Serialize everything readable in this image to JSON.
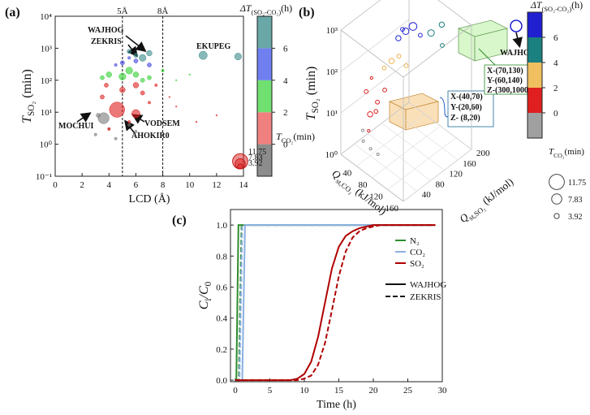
{
  "chart_data": [
    {
      "type": "scatter",
      "panel": "(a)",
      "xlabel": [
        {
          "t": "LCD (Å)"
        }
      ],
      "ylabel": [
        {
          "t": "T",
          "it": true
        },
        {
          "t": "SO₂",
          "sub": true
        },
        {
          "t": " (min)"
        }
      ],
      "xlim": [
        0,
        14
      ],
      "xticks": [
        0,
        2,
        4,
        6,
        8,
        10,
        12,
        14
      ],
      "ylim": [
        0.1,
        10000
      ],
      "log_y": true,
      "yticks": [
        {
          "value": 0.1,
          "label": "10⁻¹"
        },
        {
          "value": 1,
          "label": "10⁰"
        },
        {
          "value": 10,
          "label": "10¹"
        },
        {
          "value": 100,
          "label": "10²"
        },
        {
          "value": 1000,
          "label": "10³"
        },
        {
          "value": 10000,
          "label": "10⁴"
        }
      ],
      "vlines": [
        {
          "value": 5,
          "label": "5Å"
        },
        {
          "value": 8,
          "label": "8Å"
        }
      ],
      "annotations": [
        "WAJHOG",
        "ZEKRIS",
        "EKUPEG",
        "MOCHUI",
        "VODSEM",
        "AHOKIR0"
      ],
      "series": [
        {
          "color": "#7a7a7a",
          "x": [
            3.6,
            3.0,
            4.0,
            4.5,
            5.5,
            6.0,
            3.2
          ],
          "values": [
            6.5,
            2,
            3,
            1.5,
            4,
            2.5,
            8
          ],
          "sizes": [
            8,
            2,
            2,
            2,
            2,
            2,
            3
          ]
        },
        {
          "color": "#e02020",
          "x": [
            4.6,
            6.0,
            3.5,
            5.0,
            6.5,
            7.0,
            5.5,
            4.0,
            7.5,
            8.5,
            9.0,
            10.5,
            3.8,
            6.0,
            12.0
          ],
          "values": [
            12,
            9,
            30,
            50,
            40,
            20,
            5,
            3,
            70,
            30,
            15,
            5,
            70,
            70,
            8
          ],
          "sizes": [
            11,
            6,
            3,
            4,
            3,
            2,
            2,
            2,
            2,
            1,
            1,
            1,
            3,
            4,
            1
          ]
        },
        {
          "color": "#30d030",
          "x": [
            4.0,
            5.0,
            6.0,
            7.0,
            8.0,
            9.0,
            3.5,
            5.5,
            10.0,
            6.5
          ],
          "values": [
            150,
            130,
            150,
            120,
            200,
            100,
            120,
            200,
            150,
            100
          ],
          "sizes": [
            4,
            5,
            4,
            3,
            2,
            1,
            3,
            5,
            1,
            3
          ]
        },
        {
          "color": "#4040e0",
          "x": [
            5.0,
            6.0,
            7.0,
            5.5,
            4.5
          ],
          "values": [
            350,
            400,
            300,
            500,
            300
          ],
          "sizes": [
            3,
            3,
            3,
            2,
            2
          ]
        },
        {
          "color": "#3a8a8a",
          "x": [
            11.0,
            13.6,
            6.5,
            7.0,
            6.0,
            5.5
          ],
          "values": [
            600,
            550,
            500,
            700,
            600,
            800
          ],
          "sizes": [
            6,
            5,
            5,
            4,
            3,
            3
          ]
        }
      ],
      "colorbar": {
        "title": [
          {
            "t": "ΔT",
            "it": true
          },
          {
            "t": "(SO₂-CO₂)",
            "sub": true
          },
          {
            "t": "(h)"
          }
        ],
        "colors": [
          "#8c8c8c",
          "#f08080",
          "#70e070",
          "#6f7ff0",
          "#6aa8a8"
        ],
        "lim": [
          -2,
          8
        ],
        "ticks": [
          0,
          2,
          4,
          6
        ]
      },
      "size_legend": {
        "title": [
          {
            "t": "T",
            "it": true
          },
          {
            "t": "CO₂",
            "sub": true
          },
          {
            "t": "(min)"
          }
        ],
        "values": [
          11.75,
          7.83,
          3.92
        ]
      }
    },
    {
      "type": "scatter3d",
      "panel": "(b)",
      "xlabel": [
        {
          "t": "Q",
          "it": true
        },
        {
          "t": "st,CO₂",
          "sub": true
        },
        {
          "t": " (kJ/mol)"
        }
      ],
      "ylabel": [
        {
          "t": "Q",
          "it": true
        },
        {
          "t": "st,SO₂",
          "sub": true
        },
        {
          "t": " (kJ/mol)"
        }
      ],
      "zlabel": [
        {
          "t": "T",
          "it": true
        },
        {
          "t": "SO₂",
          "sub": true
        },
        {
          "t": " (min)"
        }
      ],
      "xlim": [
        0,
        160
      ],
      "xticks": [
        40,
        80,
        120,
        160
      ],
      "ylim": [
        0,
        200
      ],
      "yticks": [
        40,
        80,
        120,
        160,
        200
      ],
      "zlim": [
        1,
        1000
      ],
      "log_z": true,
      "zticks": [
        {
          "value": 1,
          "label": "10⁰"
        },
        {
          "value": 10,
          "label": "10¹"
        },
        {
          "value": 100,
          "label": "10²"
        },
        {
          "value": 1000,
          "label": "10³"
        }
      ],
      "annotations": [
        "WAJHOG"
      ],
      "box_low": [
        "X-(40,70)",
        "Y-(20,60)",
        "Z- (8,20)"
      ],
      "box_high": [
        "X-(70,130)",
        "Y-(60,140)",
        "Z-(300,1000)"
      ],
      "series": [
        {
          "color": "#8c8c8c",
          "x": [
            40,
            50,
            30,
            60
          ],
          "y": [
            20,
            30,
            30,
            40
          ],
          "values": [
            3,
            2,
            4,
            1.5
          ],
          "sizes": [
            2,
            2,
            2,
            2
          ]
        },
        {
          "color": "#e02020",
          "x": [
            40,
            50,
            30,
            60,
            45,
            35,
            55
          ],
          "y": [
            40,
            50,
            40,
            60,
            30,
            50,
            40
          ],
          "values": [
            10,
            20,
            30,
            40,
            5,
            60,
            15
          ],
          "sizes": [
            4,
            3,
            3,
            3,
            2,
            2,
            3
          ]
        },
        {
          "color": "#f0b050",
          "x": [
            60,
            70,
            50,
            80
          ],
          "y": [
            80,
            90,
            70,
            100
          ],
          "values": [
            150,
            200,
            100,
            120
          ],
          "sizes": [
            4,
            3,
            3,
            3
          ]
        },
        {
          "color": "#1a8080",
          "x": [
            100,
            110,
            120
          ],
          "y": [
            150,
            170,
            160
          ],
          "values": [
            500,
            700,
            300
          ],
          "sizes": [
            5,
            4,
            3
          ]
        },
        {
          "color": "#2020d0",
          "x": [
            70,
            80,
            60,
            90,
            75
          ],
          "y": [
            110,
            120,
            100,
            130,
            95
          ],
          "values": [
            600,
            800,
            400,
            500,
            900
          ],
          "sizes": [
            5,
            6,
            4,
            3,
            3
          ]
        }
      ],
      "colorbar": {
        "title": [
          {
            "t": "ΔT",
            "it": true
          },
          {
            "t": "(SO₂-CO₂)",
            "sub": true
          },
          {
            "t": "(h)"
          }
        ],
        "colors": [
          "#a0a0a0",
          "#e02020",
          "#f0c060",
          "#1a8080",
          "#2020d0"
        ],
        "lim": [
          -2,
          8
        ],
        "ticks": [
          0,
          2,
          4,
          6
        ]
      },
      "size_legend": {
        "title": [
          {
            "t": "T",
            "it": true
          },
          {
            "t": "CO₂",
            "sub": true
          },
          {
            "t": "(min)"
          }
        ],
        "values": [
          11.75,
          7.83,
          3.92
        ]
      }
    },
    {
      "type": "line",
      "panel": "(c)",
      "xlabel": [
        {
          "t": "Time (h)"
        }
      ],
      "ylabel": [
        {
          "t": "C",
          "it": true
        },
        {
          "t": "i",
          "sub": true
        },
        {
          "t": "/C",
          "it": true
        },
        {
          "t": "0",
          "sub": true
        }
      ],
      "xlim": [
        -0.7,
        30
      ],
      "xticks": [
        0,
        5,
        10,
        15,
        20,
        25,
        30
      ],
      "ylim": [
        -0.01,
        1.1
      ],
      "yticks": [
        {
          "value": 0,
          "label": "0.0"
        },
        0.2,
        0.4,
        0.6,
        0.8,
        {
          "value": 1,
          "label": "1.0"
        }
      ],
      "series": [
        {
          "name": "N₂",
          "color": "#2e8b2e",
          "runs": [
            {
              "name": "WAJHOG",
              "dash": false,
              "x": [
                0,
                0.15,
                0.3,
                0.45,
                29
              ],
              "values": [
                0,
                0,
                0.5,
                1,
                1
              ]
            },
            {
              "name": "ZEKRIS",
              "dash": true,
              "x": [
                0,
                0.5,
                0.7,
                0.9,
                29
              ],
              "values": [
                0,
                0,
                0.5,
                1,
                1
              ]
            }
          ]
        },
        {
          "name": "CO₂",
          "color": "#8ab0e0",
          "runs": [
            {
              "name": "WAJHOG",
              "dash": false,
              "x": [
                0,
                1.0,
                1.2,
                1.4,
                29
              ],
              "values": [
                0,
                0,
                0.5,
                1,
                1
              ]
            },
            {
              "name": "ZEKRIS",
              "dash": true,
              "x": [
                0,
                0.6,
                0.8,
                1.0,
                29
              ],
              "values": [
                0,
                0,
                0.5,
                1,
                1
              ]
            }
          ]
        },
        {
          "name": "SO₂",
          "color": "#b00000",
          "runs": [
            {
              "name": "WAJHOG",
              "dash": false,
              "x": [
                0,
                8,
                9,
                10,
                11,
                12,
                13,
                14,
                15,
                16,
                17,
                18,
                20,
                22,
                29
              ],
              "values": [
                0,
                0,
                0.01,
                0.04,
                0.12,
                0.28,
                0.5,
                0.72,
                0.86,
                0.93,
                0.96,
                0.98,
                1,
                1,
                1
              ]
            },
            {
              "name": "ZEKRIS",
              "dash": true,
              "x": [
                0,
                9,
                10,
                11,
                12,
                13,
                14,
                15,
                16,
                17,
                18,
                19,
                21,
                23,
                29
              ],
              "values": [
                0,
                0,
                0.01,
                0.03,
                0.1,
                0.24,
                0.45,
                0.67,
                0.83,
                0.92,
                0.96,
                0.98,
                1,
                1,
                1
              ]
            }
          ]
        }
      ]
    }
  ]
}
